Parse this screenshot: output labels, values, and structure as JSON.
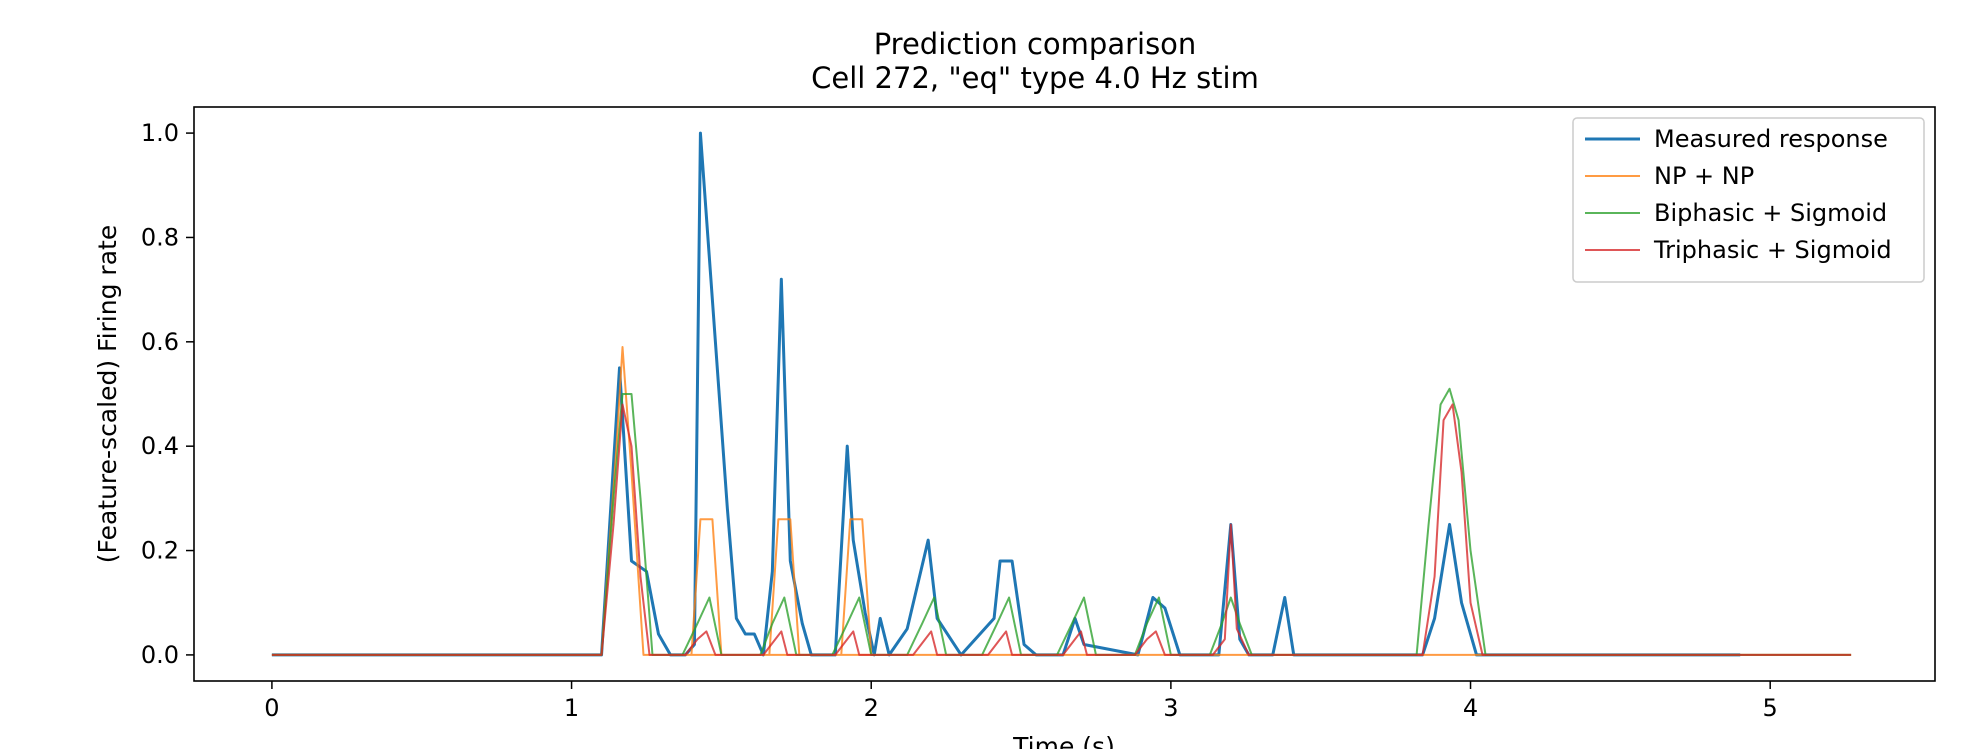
{
  "chart_data": {
    "type": "line",
    "title": "Prediction comparison",
    "subtitle": "Cell 272, \"eq\" type 4.0 Hz stim",
    "xlabel": "Time (s)",
    "ylabel": "(Feature-scaled) Firing rate",
    "xlim": [
      -0.26,
      5.55
    ],
    "ylim": [
      -0.05,
      1.05
    ],
    "xticks": [
      0,
      1,
      2,
      3,
      4,
      5
    ],
    "yticks": [
      0.0,
      0.2,
      0.4,
      0.6,
      0.8,
      1.0
    ],
    "xtick_labels": [
      "0",
      "1",
      "2",
      "3",
      "4",
      "5"
    ],
    "ytick_labels": [
      "0.0",
      "0.2",
      "0.4",
      "0.6",
      "0.8",
      "1.0"
    ],
    "grid": false,
    "legend_position": "top-right",
    "series": [
      {
        "name": "Measured response",
        "color": "#1f77b4",
        "x": [
          0,
          1.1,
          1.16,
          1.2,
          1.25,
          1.29,
          1.33,
          1.38,
          1.41,
          1.43,
          1.48,
          1.52,
          1.55,
          1.58,
          1.61,
          1.64,
          1.67,
          1.7,
          1.73,
          1.77,
          1.8,
          1.88,
          1.92,
          1.94,
          1.98,
          2.01,
          2.03,
          2.06,
          2.12,
          2.19,
          2.22,
          2.3,
          2.41,
          2.43,
          2.47,
          2.51,
          2.55,
          2.64,
          2.68,
          2.71,
          2.89,
          2.94,
          2.98,
          3.03,
          3.16,
          3.2,
          3.23,
          3.26,
          3.34,
          3.38,
          3.41,
          3.49,
          3.84,
          3.88,
          3.93,
          3.97,
          4.02,
          4.9
        ],
        "y": [
          0,
          0,
          0.55,
          0.18,
          0.16,
          0.04,
          0,
          0,
          0.02,
          1.0,
          0.6,
          0.28,
          0.07,
          0.04,
          0.04,
          0,
          0.16,
          0.72,
          0.18,
          0.06,
          0,
          0,
          0.4,
          0.22,
          0.08,
          0,
          0.07,
          0,
          0.05,
          0.22,
          0.07,
          0,
          0.07,
          0.18,
          0.18,
          0.02,
          0,
          0,
          0.07,
          0.02,
          0,
          0.11,
          0.09,
          0,
          0,
          0.25,
          0.03,
          0,
          0,
          0.11,
          0,
          0,
          0,
          0.07,
          0.25,
          0.1,
          0,
          0
        ]
      },
      {
        "name": "NP + NP",
        "color": "#ff7f0e",
        "x": [
          0,
          1.1,
          1.15,
          1.17,
          1.2,
          1.24,
          5.27,
          1.24,
          1.4,
          1.43,
          1.47,
          1.5,
          1.66,
          1.69,
          1.73,
          1.76,
          1.9,
          1.93,
          1.97,
          2.0
        ],
        "y": [
          0,
          0,
          0.4,
          0.59,
          0.35,
          0,
          0,
          null,
          0,
          0.26,
          0.26,
          0,
          0,
          0.26,
          0.26,
          0,
          0,
          0.26,
          0.26,
          0
        ]
      },
      {
        "name": "Biphasic + Sigmoid",
        "color": "#2ca02c",
        "x": [
          0,
          1.1,
          1.14,
          1.17,
          1.2,
          1.23,
          1.27,
          1.37,
          1.42,
          1.46,
          1.5,
          1.63,
          1.67,
          1.71,
          1.75,
          1.87,
          1.92,
          1.96,
          2.0,
          2.12,
          2.17,
          2.21,
          2.25,
          2.37,
          2.42,
          2.46,
          2.5,
          2.62,
          2.67,
          2.71,
          2.75,
          2.88,
          2.92,
          2.96,
          3.0,
          3.13,
          3.17,
          3.2,
          3.23,
          3.27,
          3.82,
          3.86,
          3.9,
          3.93,
          3.96,
          4.0,
          4.05,
          5.27
        ],
        "y": [
          0,
          0,
          0.3,
          0.5,
          0.5,
          0.3,
          0,
          0,
          0.06,
          0.11,
          0,
          0,
          0.06,
          0.11,
          0,
          0,
          0.06,
          0.11,
          0,
          0,
          0.06,
          0.11,
          0,
          0,
          0.06,
          0.11,
          0,
          0,
          0.06,
          0.11,
          0,
          0,
          0.06,
          0.11,
          0,
          0,
          0.06,
          0.11,
          0.06,
          0,
          0,
          0.25,
          0.48,
          0.51,
          0.45,
          0.2,
          0,
          0
        ]
      },
      {
        "name": "Triphasic + Sigmoid",
        "color": "#d62728",
        "x": [
          0,
          1.1,
          1.14,
          1.17,
          1.2,
          1.23,
          1.26,
          1.38,
          1.42,
          1.45,
          1.48,
          1.64,
          1.68,
          1.7,
          1.72,
          1.88,
          1.92,
          1.94,
          1.96,
          2.14,
          2.18,
          2.2,
          2.22,
          2.39,
          2.43,
          2.45,
          2.47,
          2.64,
          2.68,
          2.7,
          2.72,
          2.88,
          2.92,
          2.95,
          2.98,
          3.14,
          3.18,
          3.2,
          3.22,
          3.26,
          3.84,
          3.88,
          3.91,
          3.94,
          3.97,
          4.0,
          4.04,
          5.27
        ],
        "y": [
          0,
          0,
          0.25,
          0.48,
          0.4,
          0.15,
          0,
          0,
          0.03,
          0.045,
          0,
          0,
          0.03,
          0.045,
          0,
          0,
          0.03,
          0.045,
          0,
          0,
          0.03,
          0.045,
          0,
          0,
          0.03,
          0.045,
          0,
          0,
          0.03,
          0.045,
          0,
          0,
          0.03,
          0.045,
          0,
          0,
          0.03,
          0.25,
          0.05,
          0,
          0,
          0.15,
          0.45,
          0.48,
          0.35,
          0.1,
          0,
          0
        ]
      }
    ]
  }
}
